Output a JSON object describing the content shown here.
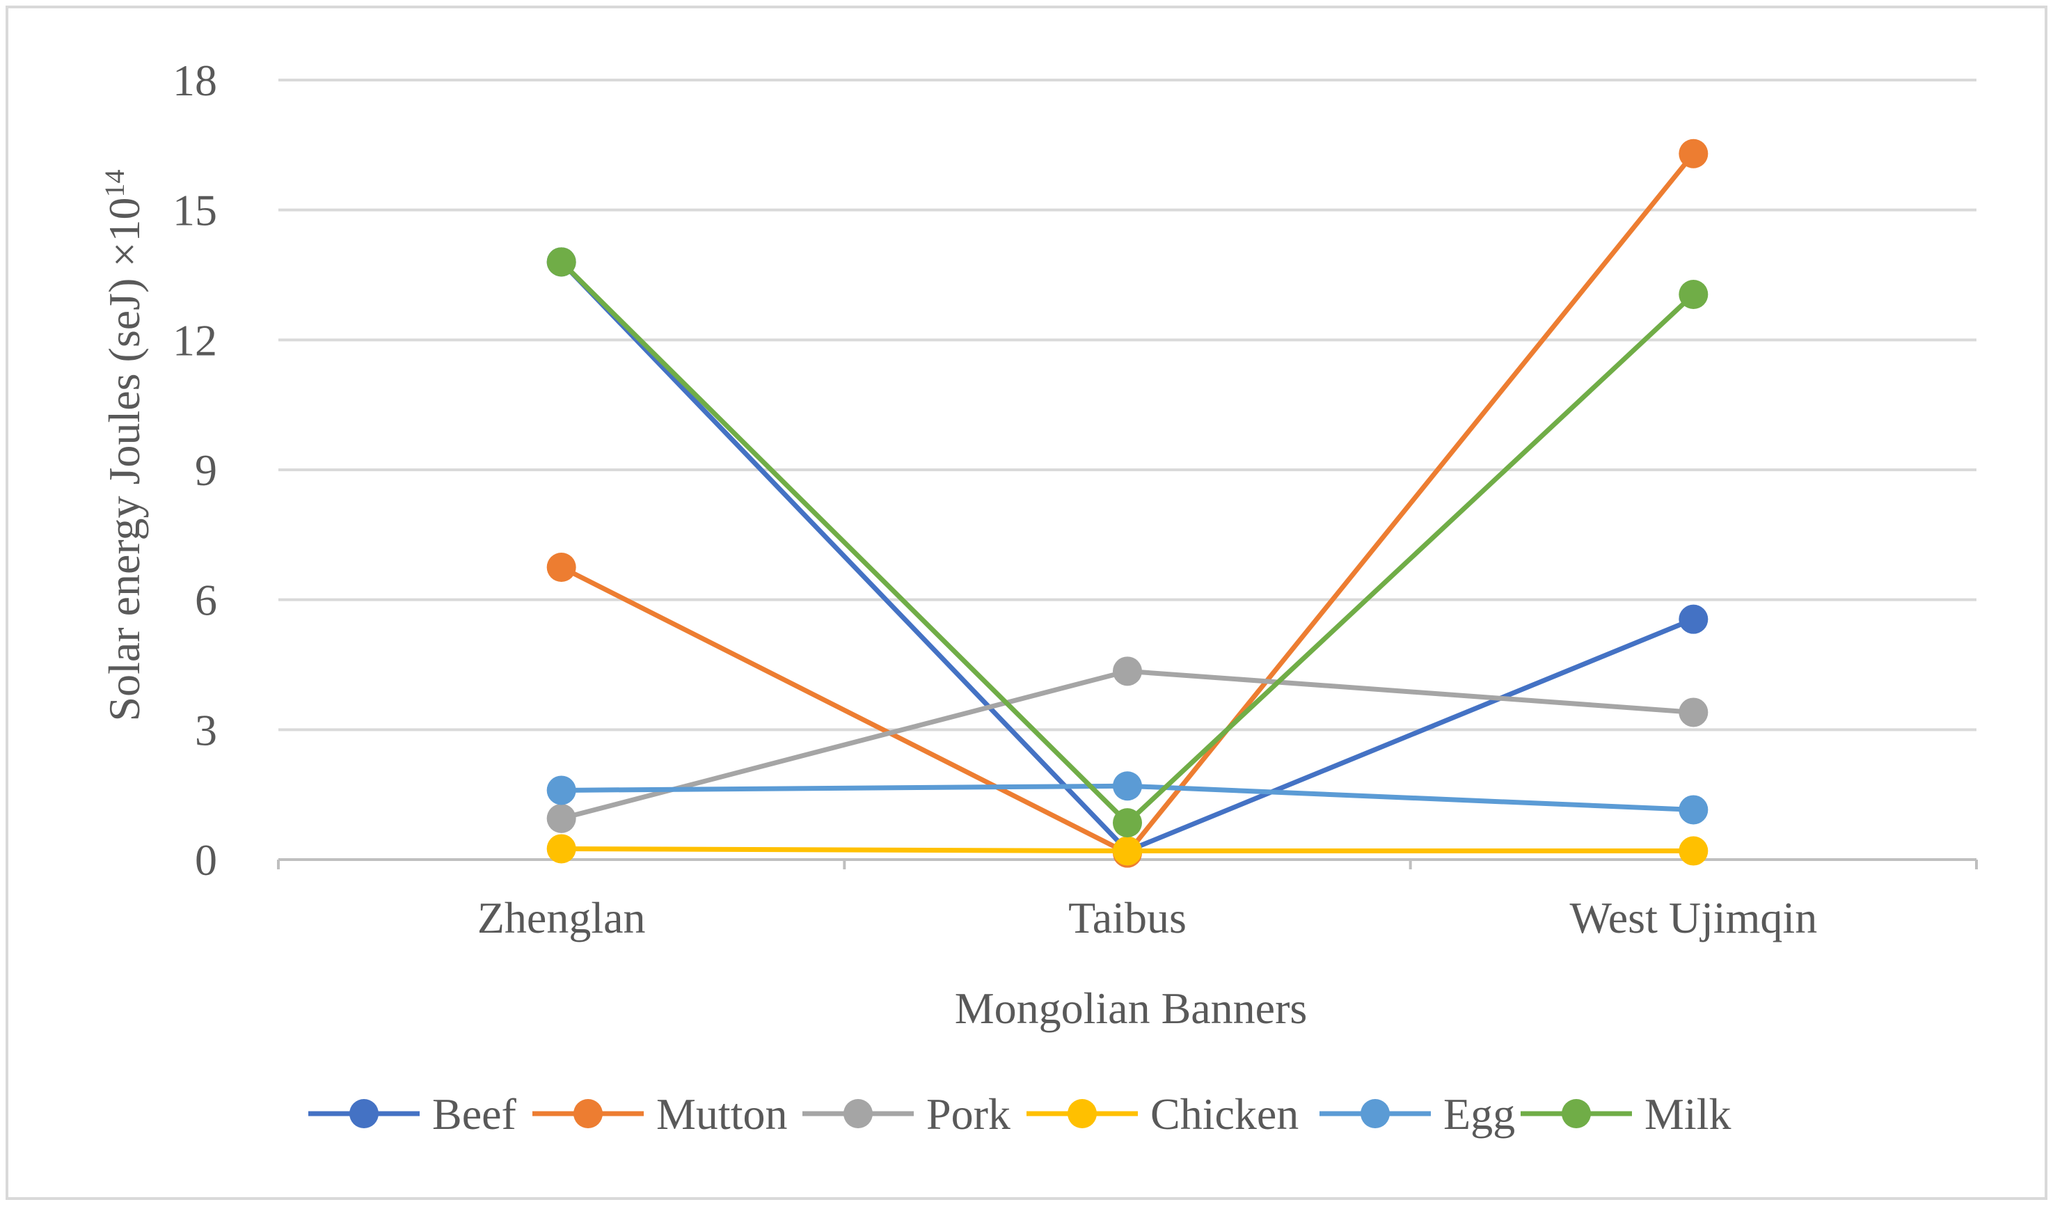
{
  "chart_data": {
    "type": "line",
    "xlabel": "Mongolian Banners",
    "ylabel": "Solar energy Joules (seJ) ×10",
    "ylabel_superscript": "14",
    "categories": [
      "Zhenglan",
      "Taibus",
      "West Ujimqin"
    ],
    "ylim": [
      0,
      18
    ],
    "yticks": [
      "0",
      "3",
      "6",
      "9",
      "12",
      "15",
      "18"
    ],
    "grid": true,
    "legend_position": "bottom",
    "series": [
      {
        "name": "Beef",
        "color": "#4472C4",
        "values": [
          13.8,
          0.2,
          5.55
        ]
      },
      {
        "name": "Mutton",
        "color": "#ED7D31",
        "values": [
          6.75,
          0.15,
          16.3
        ]
      },
      {
        "name": "Pork",
        "color": "#A5A5A5",
        "values": [
          0.95,
          4.35,
          3.4
        ]
      },
      {
        "name": "Chicken",
        "color": "#FFC000",
        "values": [
          0.25,
          0.2,
          0.2
        ]
      },
      {
        "name": "Egg",
        "color": "#5B9BD5",
        "values": [
          1.6,
          1.7,
          1.15
        ]
      },
      {
        "name": "Milk",
        "color": "#70AD47",
        "values": [
          13.8,
          0.85,
          13.05
        ]
      }
    ]
  }
}
